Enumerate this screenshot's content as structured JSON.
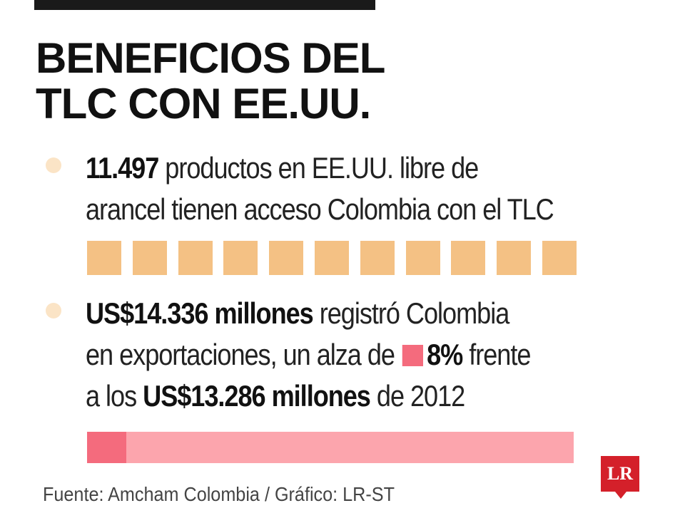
{
  "title": {
    "line1": "BENEFICIOS DEL",
    "line2": "TLC CON EE.UU."
  },
  "stat1": {
    "number": "11.497",
    "text_line1": " productos en EE.UU. libre de",
    "text_line2": "arancel tienen acceso Colombia con el TLC",
    "squares_count": 11,
    "square_color": "#f4c184"
  },
  "stat2": {
    "amount": "US$14.336 millones",
    "text_line1": " registró Colombia",
    "text_line2": "en exportaciones, un alza de ",
    "percent": "8%",
    "text_line2_end": " frente",
    "text_line3_start": "a los ",
    "prev_amount": "US$13.286 millones",
    "text_line3_end": " de 2012",
    "growth_fraction": 0.08,
    "bar_color": "#fca5ad",
    "fill_color": "#f46b7d"
  },
  "source": "Fuente: Amcham Colombia / Gráfico: LR-ST",
  "logo": "LR",
  "colors": {
    "bullet": "#fbe4c6",
    "logo_red": "#d4202a",
    "text": "#1a1a1a"
  }
}
